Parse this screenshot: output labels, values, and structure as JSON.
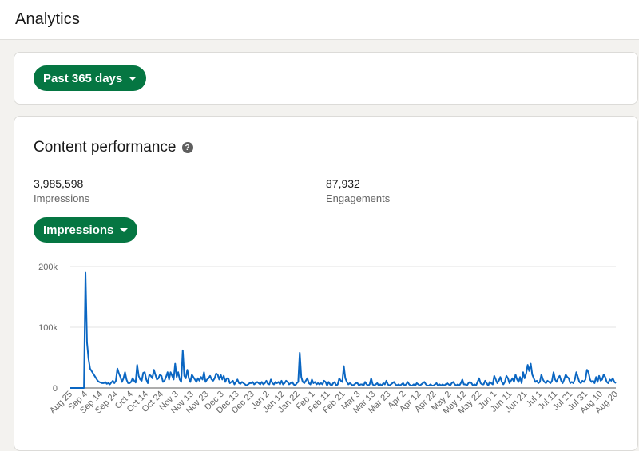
{
  "header": {
    "title": "Analytics"
  },
  "filter": {
    "range_label": "Past 365 days"
  },
  "performance": {
    "title": "Content performance",
    "metrics": [
      {
        "value": "3,985,598",
        "label": "Impressions"
      },
      {
        "value": "87,932",
        "label": "Engagements"
      }
    ],
    "metric_selector_label": "Impressions"
  },
  "colors": {
    "accent": "#057642",
    "line": "#0a66c2"
  },
  "icons": {
    "help": "question-circle-icon",
    "caret": "caret-down-icon"
  },
  "chart_data": {
    "type": "line",
    "y_ticks": [
      "0",
      "100k",
      "200k"
    ],
    "ylim": [
      0,
      200000
    ],
    "x_ticks": [
      "Aug 25",
      "Sep 4",
      "Sep 14",
      "Sep 24",
      "Oct 4",
      "Oct 14",
      "Oct 24",
      "Nov 3",
      "Nov 13",
      "Nov 23",
      "Dec 3",
      "Dec 13",
      "Dec 23",
      "Jan 2",
      "Jan 12",
      "Jan 22",
      "Feb 1",
      "Feb 11",
      "Feb 21",
      "Mar 3",
      "Mar 13",
      "Mar 23",
      "Apr 2",
      "Apr 12",
      "Apr 22",
      "May 2",
      "May 12",
      "May 22",
      "Jun 1",
      "Jun 11",
      "Jun 21",
      "Jul 1",
      "Jul 11",
      "Jul 21",
      "Jul 31",
      "Aug 10",
      "Aug 20"
    ],
    "series": [
      {
        "values": [
          0,
          0,
          0,
          0,
          0,
          0,
          0,
          0,
          0,
          0,
          190000,
          75000,
          48000,
          32000,
          28000,
          24000,
          20000,
          16000,
          12000,
          10000,
          9000,
          8000,
          8000,
          10000,
          7000,
          8000,
          6000,
          9000,
          12000,
          8000,
          12000,
          32000,
          24000,
          18000,
          10000,
          16000,
          26000,
          14000,
          8000,
          8000,
          10000,
          16000,
          12000,
          9000,
          38000,
          20000,
          14000,
          12000,
          25000,
          26000,
          14000,
          8000,
          22000,
          20000,
          16000,
          30000,
          22000,
          14000,
          16000,
          22000,
          20000,
          10000,
          12000,
          18000,
          26000,
          14000,
          26000,
          20000,
          14000,
          40000,
          18000,
          26000,
          14000,
          10000,
          62000,
          20000,
          16000,
          30000,
          16000,
          10000,
          22000,
          18000,
          14000,
          10000,
          16000,
          12000,
          18000,
          14000,
          26000,
          10000,
          14000,
          16000,
          20000,
          14000,
          12000,
          16000,
          24000,
          22000,
          14000,
          22000,
          14000,
          20000,
          10000,
          16000,
          16000,
          8000,
          10000,
          12000,
          6000,
          10000,
          14000,
          8000,
          7000,
          10000,
          8000,
          6000,
          4000,
          6000,
          8000,
          8000,
          10000,
          6000,
          8000,
          10000,
          8000,
          6000,
          10000,
          6000,
          8000,
          12000,
          7000,
          6000,
          14000,
          8000,
          6000,
          10000,
          8000,
          10000,
          6000,
          12000,
          6000,
          8000,
          12000,
          10000,
          6000,
          8000,
          10000,
          6000,
          4000,
          8000,
          10000,
          58000,
          18000,
          10000,
          8000,
          12000,
          16000,
          8000,
          6000,
          14000,
          8000,
          10000,
          6000,
          8000,
          6000,
          8000,
          6000,
          12000,
          10000,
          4000,
          10000,
          6000,
          4000,
          8000,
          10000,
          4000,
          6000,
          16000,
          12000,
          10000,
          36000,
          16000,
          10000,
          6000,
          8000,
          6000,
          4000,
          6000,
          8000,
          8000,
          4000,
          6000,
          6000,
          4000,
          10000,
          6000,
          4000,
          6000,
          16000,
          6000,
          4000,
          6000,
          8000,
          4000,
          6000,
          4000,
          8000,
          6000,
          12000,
          6000,
          4000,
          6000,
          8000,
          10000,
          6000,
          4000,
          6000,
          4000,
          6000,
          8000,
          4000,
          6000,
          10000,
          6000,
          4000,
          4000,
          6000,
          4000,
          8000,
          6000,
          4000,
          6000,
          8000,
          10000,
          6000,
          4000,
          4000,
          6000,
          4000,
          4000,
          6000,
          8000,
          4000,
          6000,
          4000,
          6000,
          4000,
          6000,
          8000,
          6000,
          4000,
          8000,
          10000,
          6000,
          4000,
          6000,
          4000,
          8000,
          14000,
          6000,
          6000,
          4000,
          8000,
          10000,
          8000,
          4000,
          6000,
          4000,
          10000,
          16000,
          8000,
          6000,
          6000,
          12000,
          8000,
          4000,
          10000,
          8000,
          6000,
          20000,
          14000,
          8000,
          12000,
          18000,
          10000,
          6000,
          10000,
          20000,
          16000,
          8000,
          12000,
          16000,
          10000,
          22000,
          14000,
          10000,
          18000,
          8000,
          26000,
          16000,
          24000,
          38000,
          28000,
          40000,
          22000,
          16000,
          10000,
          12000,
          8000,
          10000,
          22000,
          14000,
          10000,
          8000,
          12000,
          10000,
          8000,
          12000,
          26000,
          14000,
          10000,
          16000,
          20000,
          12000,
          8000,
          14000,
          22000,
          18000,
          16000,
          8000,
          10000,
          8000,
          14000,
          26000,
          18000,
          10000,
          8000,
          12000,
          10000,
          14000,
          30000,
          26000,
          14000,
          10000,
          12000,
          8000,
          18000,
          10000,
          20000,
          12000,
          14000,
          22000,
          18000,
          10000,
          8000,
          14000,
          12000,
          16000,
          10000,
          8000
        ]
      }
    ]
  }
}
